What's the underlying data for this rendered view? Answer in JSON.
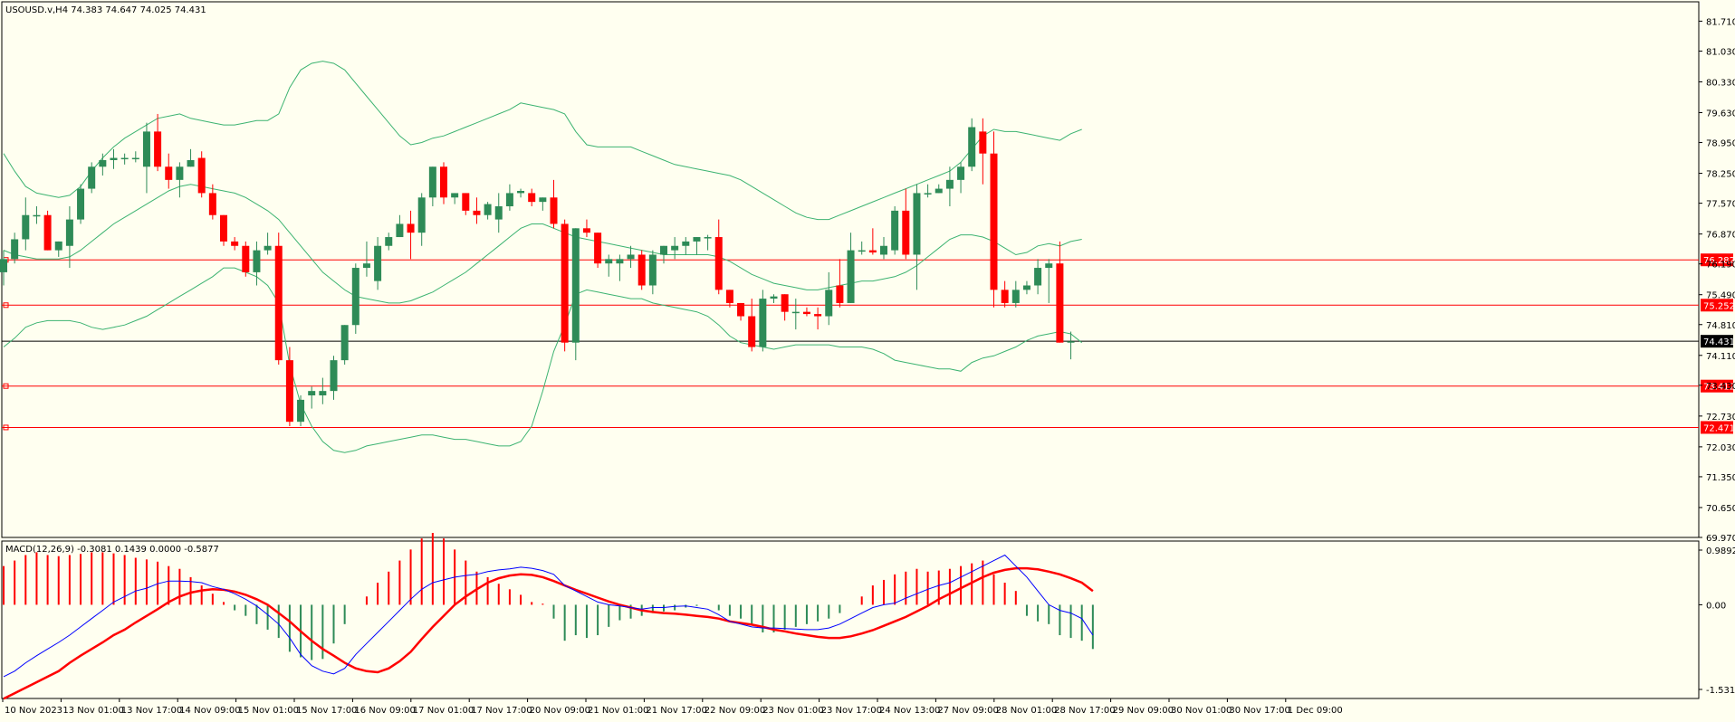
{
  "window": {
    "info_label": "USOUSD.v,H4  74.383 74.647 74.025 74.431"
  },
  "colors": {
    "background": "#fffff0",
    "bull": "#2e8b57",
    "bear": "#ff0000",
    "band": "#3cb371",
    "macd_line": "#0000ff",
    "signal_line": "#ff0000",
    "level_line": "#ff0000",
    "price_line": "#000000"
  },
  "chart_data": [
    {
      "type": "candlestick",
      "title": "USOUSD.v,H4  74.383 74.647 74.025 74.431",
      "ylim": [
        69.97,
        82.15
      ],
      "y_ticks": [
        "81.710",
        "81.030",
        "80.330",
        "79.630",
        "78.950",
        "78.250",
        "77.570",
        "76.870",
        "76.190",
        "75.490",
        "74.810",
        "74.110",
        "73.430",
        "72.730",
        "72.030",
        "71.350",
        "70.650",
        "69.970"
      ],
      "current_price": 74.431,
      "current_price_label": "74.431",
      "levels": [
        {
          "value": 76.282,
          "label": "76.282"
        },
        {
          "value": 75.252,
          "label": "75.252"
        },
        {
          "value": 73.412,
          "label": "73.412"
        },
        {
          "value": 72.471,
          "label": "72.471"
        }
      ],
      "x_labels": [
        "10 Nov 2023",
        "13 Nov 01:00",
        "13 Nov 17:00",
        "14 Nov 09:00",
        "15 Nov 01:00",
        "15 Nov 17:00",
        "16 Nov 09:00",
        "17 Nov 01:00",
        "17 Nov 17:00",
        "20 Nov 09:00",
        "21 Nov 01:00",
        "21 Nov 17:00",
        "22 Nov 09:00",
        "23 Nov 01:00",
        "23 Nov 17:00",
        "24 Nov 13:00",
        "27 Nov 09:00",
        "28 Nov 01:00",
        "28 Nov 17:00",
        "29 Nov 09:00",
        "30 Nov 01:00",
        "30 Nov 17:00",
        "1 Dec 09:00"
      ],
      "candles": [
        [
          76.0,
          76.5,
          75.7,
          76.3
        ],
        [
          76.3,
          76.9,
          76.2,
          76.75
        ],
        [
          76.75,
          77.7,
          76.5,
          77.3
        ],
        [
          77.3,
          77.5,
          77.1,
          77.3
        ],
        [
          77.3,
          77.4,
          76.5,
          76.5
        ],
        [
          76.5,
          76.7,
          76.35,
          76.7
        ],
        [
          76.6,
          77.5,
          76.1,
          77.2
        ],
        [
          77.2,
          78.0,
          77.1,
          77.9
        ],
        [
          77.9,
          78.5,
          77.8,
          78.4
        ],
        [
          78.4,
          78.7,
          78.2,
          78.55
        ],
        [
          78.55,
          78.8,
          78.35,
          78.6
        ],
        [
          78.6,
          78.7,
          78.45,
          78.6
        ],
        [
          78.6,
          78.75,
          78.5,
          78.6
        ],
        [
          78.4,
          79.4,
          77.8,
          79.2
        ],
        [
          79.2,
          79.6,
          78.3,
          78.4
        ],
        [
          78.4,
          78.7,
          77.9,
          78.1
        ],
        [
          78.1,
          78.5,
          77.7,
          78.4
        ],
        [
          78.4,
          78.8,
          78.4,
          78.55
        ],
        [
          78.6,
          78.75,
          77.7,
          77.8
        ],
        [
          77.8,
          78.0,
          77.2,
          77.3
        ],
        [
          77.3,
          77.3,
          76.6,
          76.7
        ],
        [
          76.7,
          76.8,
          76.5,
          76.6
        ],
        [
          76.6,
          76.7,
          75.9,
          76.0
        ],
        [
          76.0,
          76.7,
          75.7,
          76.5
        ],
        [
          76.5,
          76.9,
          76.4,
          76.6
        ],
        [
          76.6,
          76.9,
          73.9,
          74.0
        ],
        [
          74.0,
          74.3,
          72.5,
          72.6
        ],
        [
          72.6,
          73.2,
          72.5,
          73.1
        ],
        [
          73.2,
          73.4,
          72.9,
          73.3
        ],
        [
          73.2,
          73.6,
          73.0,
          73.3
        ],
        [
          73.3,
          74.1,
          73.1,
          74.0
        ],
        [
          74.0,
          74.8,
          73.9,
          74.8
        ],
        [
          74.8,
          76.2,
          74.6,
          76.1
        ],
        [
          76.1,
          76.7,
          75.9,
          76.2
        ],
        [
          75.8,
          76.8,
          75.6,
          76.6
        ],
        [
          76.6,
          76.9,
          76.5,
          76.8
        ],
        [
          76.8,
          77.3,
          76.8,
          77.1
        ],
        [
          77.1,
          77.4,
          76.3,
          76.9
        ],
        [
          76.9,
          77.8,
          76.6,
          77.7
        ],
        [
          77.7,
          78.4,
          77.5,
          78.4
        ],
        [
          78.4,
          78.5,
          77.55,
          77.7
        ],
        [
          77.7,
          77.8,
          77.55,
          77.8
        ],
        [
          77.8,
          77.8,
          77.3,
          77.4
        ],
        [
          77.4,
          77.7,
          77.1,
          77.3
        ],
        [
          77.3,
          77.6,
          77.2,
          77.55
        ],
        [
          77.2,
          77.8,
          76.9,
          77.5
        ],
        [
          77.5,
          78.0,
          77.4,
          77.8
        ],
        [
          77.8,
          77.9,
          77.7,
          77.85
        ],
        [
          77.8,
          77.9,
          77.5,
          77.6
        ],
        [
          77.6,
          77.7,
          77.4,
          77.7
        ],
        [
          77.7,
          78.1,
          77.0,
          77.1
        ],
        [
          77.1,
          77.2,
          74.2,
          74.4
        ],
        [
          74.4,
          77.0,
          74.0,
          77.0
        ],
        [
          77.0,
          77.2,
          76.8,
          76.9
        ],
        [
          76.9,
          76.9,
          76.1,
          76.2
        ],
        [
          76.2,
          76.4,
          75.9,
          76.3
        ],
        [
          76.2,
          76.4,
          75.8,
          76.3
        ],
        [
          76.3,
          76.6,
          76.1,
          76.4
        ],
        [
          76.4,
          76.5,
          75.6,
          75.7
        ],
        [
          75.7,
          76.5,
          75.5,
          76.4
        ],
        [
          76.4,
          76.6,
          76.2,
          76.6
        ],
        [
          76.5,
          76.8,
          76.3,
          76.6
        ],
        [
          76.6,
          76.8,
          76.4,
          76.7
        ],
        [
          76.7,
          76.8,
          76.4,
          76.8
        ],
        [
          76.8,
          76.85,
          76.5,
          76.8
        ],
        [
          76.8,
          77.2,
          75.5,
          75.6
        ],
        [
          75.6,
          75.6,
          75.2,
          75.3
        ],
        [
          75.3,
          75.3,
          74.9,
          75.0
        ],
        [
          75.0,
          75.4,
          74.2,
          74.3
        ],
        [
          74.3,
          75.6,
          74.2,
          75.4
        ],
        [
          75.4,
          75.5,
          75.3,
          75.45
        ],
        [
          75.5,
          75.5,
          74.9,
          75.1
        ],
        [
          75.1,
          75.4,
          74.7,
          75.1
        ],
        [
          75.1,
          75.2,
          75.0,
          75.05
        ],
        [
          75.05,
          75.2,
          74.7,
          75.0
        ],
        [
          75.0,
          76.0,
          74.8,
          75.6
        ],
        [
          75.7,
          76.3,
          75.2,
          75.3
        ],
        [
          75.3,
          76.9,
          75.3,
          76.5
        ],
        [
          76.5,
          76.7,
          76.4,
          76.5
        ],
        [
          76.5,
          77.0,
          76.4,
          76.45
        ],
        [
          76.4,
          76.8,
          76.3,
          76.6
        ],
        [
          76.5,
          77.5,
          76.4,
          77.4
        ],
        [
          77.4,
          77.9,
          76.3,
          76.4
        ],
        [
          76.4,
          78.0,
          75.6,
          77.8
        ],
        [
          77.8,
          78.0,
          77.7,
          77.8
        ],
        [
          77.8,
          78.0,
          77.8,
          77.9
        ],
        [
          77.9,
          78.4,
          77.5,
          78.1
        ],
        [
          78.1,
          78.5,
          77.8,
          78.4
        ],
        [
          78.4,
          79.5,
          78.3,
          79.3
        ],
        [
          79.2,
          79.5,
          78.0,
          78.7
        ],
        [
          78.7,
          79.2,
          75.2,
          75.6
        ],
        [
          75.6,
          75.8,
          75.2,
          75.3
        ],
        [
          75.3,
          75.8,
          75.2,
          75.6
        ],
        [
          75.6,
          75.8,
          75.5,
          75.7
        ],
        [
          75.7,
          76.3,
          75.5,
          76.1
        ],
        [
          76.1,
          76.3,
          75.3,
          76.2
        ],
        [
          76.2,
          76.7,
          74.4,
          74.4
        ],
        [
          74.4,
          74.65,
          74.02,
          74.43
        ]
      ],
      "bb_upper": [
        78.7,
        78.3,
        77.95,
        77.8,
        77.75,
        77.7,
        77.75,
        77.95,
        78.3,
        78.6,
        78.85,
        79.05,
        79.2,
        79.35,
        79.5,
        79.55,
        79.6,
        79.5,
        79.45,
        79.4,
        79.35,
        79.35,
        79.4,
        79.45,
        79.45,
        79.6,
        80.2,
        80.6,
        80.75,
        80.8,
        80.75,
        80.6,
        80.3,
        80.0,
        79.7,
        79.4,
        79.1,
        78.9,
        78.95,
        79.05,
        79.1,
        79.2,
        79.3,
        79.4,
        79.5,
        79.6,
        79.7,
        79.85,
        79.8,
        79.75,
        79.7,
        79.6,
        79.2,
        78.9,
        78.85,
        78.85,
        78.85,
        78.85,
        78.75,
        78.65,
        78.55,
        78.45,
        78.4,
        78.35,
        78.3,
        78.25,
        78.2,
        78.1,
        77.95,
        77.8,
        77.65,
        77.5,
        77.35,
        77.25,
        77.2,
        77.2,
        77.3,
        77.4,
        77.5,
        77.6,
        77.7,
        77.8,
        77.9,
        78.0,
        78.1,
        78.2,
        78.3,
        78.5,
        78.8,
        79.1,
        79.25,
        79.2,
        79.2,
        79.15,
        79.1,
        79.05,
        79.0,
        79.15,
        79.25
      ],
      "bb_middle": [
        76.5,
        76.4,
        76.35,
        76.3,
        76.3,
        76.3,
        76.35,
        76.5,
        76.7,
        76.9,
        77.1,
        77.25,
        77.4,
        77.55,
        77.7,
        77.85,
        77.95,
        78.0,
        77.95,
        77.9,
        77.85,
        77.8,
        77.7,
        77.55,
        77.4,
        77.2,
        76.9,
        76.6,
        76.3,
        76.0,
        75.8,
        75.6,
        75.45,
        75.4,
        75.35,
        75.3,
        75.3,
        75.35,
        75.45,
        75.55,
        75.7,
        75.85,
        76.0,
        76.2,
        76.4,
        76.6,
        76.8,
        77.0,
        77.1,
        77.1,
        77.0,
        76.9,
        76.8,
        76.75,
        76.7,
        76.65,
        76.6,
        76.55,
        76.5,
        76.45,
        76.4,
        76.4,
        76.4,
        76.4,
        76.4,
        76.35,
        76.25,
        76.1,
        75.95,
        75.85,
        75.75,
        75.7,
        75.65,
        75.6,
        75.6,
        75.65,
        75.7,
        75.75,
        75.8,
        75.8,
        75.85,
        75.9,
        76.0,
        76.15,
        76.35,
        76.55,
        76.75,
        76.85,
        76.85,
        76.8,
        76.7,
        76.55,
        76.4,
        76.45,
        76.6,
        76.65,
        76.6,
        76.7,
        76.75
      ],
      "bb_lower": [
        74.3,
        74.5,
        74.75,
        74.85,
        74.9,
        74.9,
        74.9,
        74.85,
        74.75,
        74.7,
        74.75,
        74.8,
        74.9,
        75.0,
        75.15,
        75.3,
        75.45,
        75.6,
        75.75,
        75.9,
        76.1,
        76.1,
        76.0,
        75.9,
        75.7,
        75.3,
        73.9,
        73.0,
        72.5,
        72.15,
        71.95,
        71.9,
        71.95,
        72.05,
        72.1,
        72.15,
        72.2,
        72.25,
        72.3,
        72.3,
        72.25,
        72.2,
        72.2,
        72.15,
        72.1,
        72.05,
        72.05,
        72.15,
        72.5,
        73.3,
        74.2,
        74.8,
        75.5,
        75.6,
        75.55,
        75.5,
        75.45,
        75.4,
        75.4,
        75.3,
        75.25,
        75.2,
        75.15,
        75.1,
        75.0,
        74.8,
        74.55,
        74.4,
        74.35,
        74.3,
        74.25,
        74.3,
        74.35,
        74.35,
        74.35,
        74.35,
        74.3,
        74.3,
        74.3,
        74.25,
        74.15,
        74.0,
        73.95,
        73.9,
        73.85,
        73.8,
        73.8,
        73.75,
        73.95,
        74.05,
        74.1,
        74.2,
        74.3,
        74.45,
        74.55,
        74.6,
        74.65,
        74.6,
        74.4
      ]
    },
    {
      "type": "macd",
      "title": "MACD(12,26,9) -0.3081 0.1439 0.0000 -0.5877",
      "ylim": [
        -1.5312,
        0.9892
      ],
      "y_ticks": [
        "0.9892",
        "0.00",
        "-1.5312"
      ],
      "histogram": [
        0.7,
        0.8,
        0.9,
        0.95,
        0.9,
        0.88,
        0.9,
        0.92,
        0.95,
        0.95,
        0.93,
        0.9,
        0.85,
        0.82,
        0.78,
        0.7,
        0.65,
        0.5,
        0.35,
        0.2,
        0.05,
        -0.1,
        -0.2,
        -0.35,
        -0.45,
        -0.6,
        -0.85,
        -0.95,
        -1.0,
        -0.98,
        -0.7,
        -0.35,
        0.0,
        0.15,
        0.4,
        0.6,
        0.8,
        1.0,
        1.2,
        1.3,
        1.2,
        1.0,
        0.8,
        0.6,
        0.5,
        0.38,
        0.28,
        0.18,
        0.05,
        0.02,
        -0.25,
        -0.65,
        -0.55,
        -0.6,
        -0.55,
        -0.4,
        -0.28,
        -0.25,
        -0.2,
        -0.15,
        -0.12,
        -0.1,
        -0.05,
        -0.02,
        0.0,
        -0.1,
        -0.2,
        -0.25,
        -0.35,
        -0.5,
        -0.5,
        -0.45,
        -0.4,
        -0.35,
        -0.3,
        -0.25,
        -0.15,
        0.0,
        0.15,
        0.35,
        0.45,
        0.55,
        0.6,
        0.65,
        0.6,
        0.62,
        0.65,
        0.7,
        0.75,
        0.8,
        0.55,
        0.4,
        0.25,
        -0.2,
        -0.3,
        -0.35,
        -0.55,
        -0.6,
        -0.65,
        -0.8
      ],
      "macd": [
        -1.3,
        -1.2,
        -1.05,
        -0.92,
        -0.8,
        -0.68,
        -0.55,
        -0.4,
        -0.25,
        -0.1,
        0.05,
        0.15,
        0.25,
        0.3,
        0.38,
        0.43,
        0.43,
        0.42,
        0.4,
        0.33,
        0.28,
        0.2,
        0.1,
        -0.02,
        -0.18,
        -0.35,
        -0.6,
        -0.9,
        -1.1,
        -1.2,
        -1.25,
        -1.15,
        -0.9,
        -0.7,
        -0.5,
        -0.3,
        -0.1,
        0.1,
        0.28,
        0.4,
        0.45,
        0.5,
        0.53,
        0.55,
        0.6,
        0.63,
        0.65,
        0.68,
        0.66,
        0.62,
        0.55,
        0.35,
        0.25,
        0.15,
        0.05,
        0.0,
        -0.02,
        -0.05,
        -0.08,
        -0.05,
        -0.05,
        -0.03,
        -0.02,
        -0.05,
        -0.08,
        -0.18,
        -0.3,
        -0.35,
        -0.4,
        -0.42,
        -0.42,
        -0.43,
        -0.44,
        -0.45,
        -0.45,
        -0.42,
        -0.35,
        -0.25,
        -0.15,
        -0.05,
        0.0,
        0.03,
        0.12,
        0.2,
        0.28,
        0.35,
        0.4,
        0.5,
        0.6,
        0.7,
        0.8,
        0.9,
        0.7,
        0.5,
        0.25,
        0.0,
        -0.1,
        -0.15,
        -0.25,
        -0.55
      ],
      "signal": [
        -1.7,
        -1.6,
        -1.5,
        -1.4,
        -1.3,
        -1.2,
        -1.05,
        -0.92,
        -0.8,
        -0.68,
        -0.55,
        -0.45,
        -0.32,
        -0.2,
        -0.08,
        0.05,
        0.15,
        0.22,
        0.26,
        0.28,
        0.27,
        0.24,
        0.18,
        0.1,
        0.0,
        -0.15,
        -0.3,
        -0.48,
        -0.65,
        -0.8,
        -0.92,
        -1.05,
        -1.15,
        -1.2,
        -1.22,
        -1.15,
        -1.02,
        -0.85,
        -0.62,
        -0.4,
        -0.2,
        0.0,
        0.15,
        0.28,
        0.4,
        0.48,
        0.53,
        0.55,
        0.54,
        0.5,
        0.43,
        0.35,
        0.27,
        0.2,
        0.13,
        0.06,
        0.0,
        -0.05,
        -0.1,
        -0.13,
        -0.15,
        -0.16,
        -0.18,
        -0.2,
        -0.22,
        -0.25,
        -0.3,
        -0.33,
        -0.36,
        -0.4,
        -0.45,
        -0.48,
        -0.52,
        -0.55,
        -0.58,
        -0.6,
        -0.6,
        -0.57,
        -0.52,
        -0.46,
        -0.38,
        -0.3,
        -0.22,
        -0.12,
        -0.02,
        0.1,
        0.2,
        0.3,
        0.4,
        0.5,
        0.58,
        0.63,
        0.66,
        0.66,
        0.64,
        0.6,
        0.55,
        0.48,
        0.4,
        0.25
      ]
    }
  ]
}
